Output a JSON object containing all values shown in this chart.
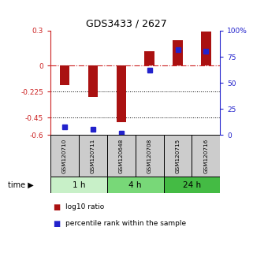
{
  "title": "GDS3433 / 2627",
  "samples": [
    "GSM120710",
    "GSM120711",
    "GSM120648",
    "GSM120708",
    "GSM120715",
    "GSM120716"
  ],
  "log10_ratio": [
    -0.17,
    -0.27,
    -0.49,
    0.12,
    0.22,
    0.295
  ],
  "percentile_rank": [
    8,
    6,
    2,
    62,
    82,
    80
  ],
  "time_groups": [
    {
      "label": "1 h",
      "indices": [
        0,
        1
      ],
      "color": "#c8f0c8"
    },
    {
      "label": "4 h",
      "indices": [
        2,
        3
      ],
      "color": "#78d878"
    },
    {
      "label": "24 h",
      "indices": [
        4,
        5
      ],
      "color": "#44bb44"
    }
  ],
  "ylim": [
    -0.6,
    0.3
  ],
  "y_ticks": [
    0.3,
    0,
    -0.225,
    -0.45,
    -0.6
  ],
  "y_tick_labels": [
    "0.3",
    "0",
    "-0.225",
    "-0.45",
    "-0.6"
  ],
  "right_yticks": [
    100,
    75,
    50,
    25,
    0
  ],
  "right_ytick_labels": [
    "100%",
    "75",
    "50",
    "25",
    "0"
  ],
  "bar_color": "#aa1111",
  "dot_color": "#2222cc",
  "hline_color": "#cc2222",
  "left_tick_color": "#cc2222",
  "right_tick_color": "#2222cc",
  "bar_width": 0.35,
  "bg_color": "#ffffff"
}
